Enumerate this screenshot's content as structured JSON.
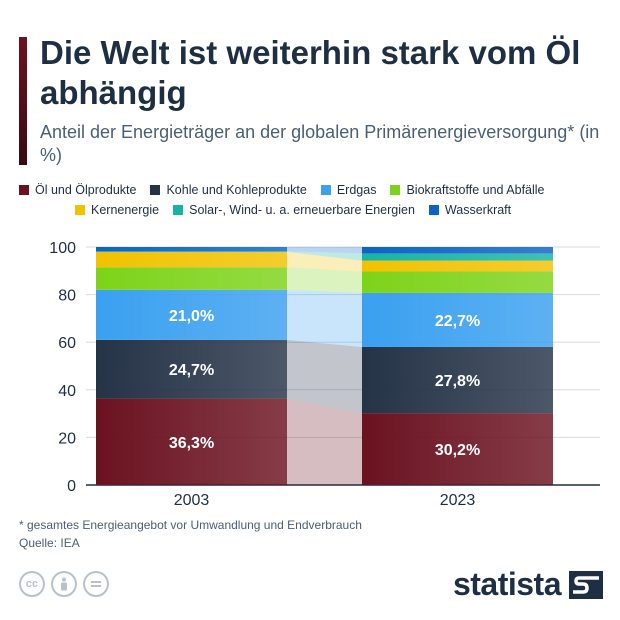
{
  "header": {
    "title": "Die Welt ist weiterhin stark vom Öl abhängig",
    "subtitle": "Anteil der Energieträger an der globalen Primärenergieversorgung* (in %)"
  },
  "legend": [
    {
      "label": "Öl und Ölprodukte",
      "color": "#6b1220"
    },
    {
      "label": "Kohle und Kohleprodukte",
      "color": "#253347"
    },
    {
      "label": "Erdgas",
      "color": "#3aa0f0"
    },
    {
      "label": "Biokraftstoffe und Abfälle",
      "color": "#7dd319"
    },
    {
      "label": "Kernenergie",
      "color": "#f2c200"
    },
    {
      "label": "Solar-, Wind- u. a. erneuerbare Energien",
      "color": "#17b3a5"
    },
    {
      "label": "Wasserkraft",
      "color": "#0c63c4"
    }
  ],
  "chart_data": {
    "type": "bar",
    "stacked": true,
    "categories": [
      "2003",
      "2023"
    ],
    "ylim": [
      0,
      100
    ],
    "yticks": [
      0,
      20,
      40,
      60,
      80,
      100
    ],
    "grid": true,
    "legend_position": "top",
    "series": [
      {
        "name": "Öl und Ölprodukte",
        "values": [
          36.3,
          30.2
        ],
        "labels": [
          "36,3%",
          "30,2%"
        ],
        "color": "#6b1220"
      },
      {
        "name": "Kohle und Kohleprodukte",
        "values": [
          24.7,
          27.8
        ],
        "labels": [
          "24,7%",
          "27,8%"
        ],
        "color": "#253347"
      },
      {
        "name": "Erdgas",
        "values": [
          21.0,
          22.7
        ],
        "labels": [
          "21,0%",
          "22,7%"
        ],
        "color": "#3aa0f0"
      },
      {
        "name": "Biokraftstoffe und Abfälle",
        "values": [
          9.5,
          9.0
        ],
        "color": "#7dd319"
      },
      {
        "name": "Kernenergie",
        "values": [
          6.4,
          4.6
        ],
        "color": "#f2c200"
      },
      {
        "name": "Solar-, Wind- u. a. erneuerbare Energien",
        "values": [
          0.3,
          3.0
        ],
        "color": "#17b3a5"
      },
      {
        "name": "Wasserkraft",
        "values": [
          1.8,
          2.7
        ],
        "color": "#0c63c4"
      }
    ]
  },
  "footer": {
    "footnote": "* gesamtes Energieangebot vor Umwandlung und Endverbrauch",
    "source": "Quelle: IEA",
    "cc_icons": [
      "cc-icon",
      "person-icon",
      "equals-icon"
    ],
    "brand": "statista"
  }
}
